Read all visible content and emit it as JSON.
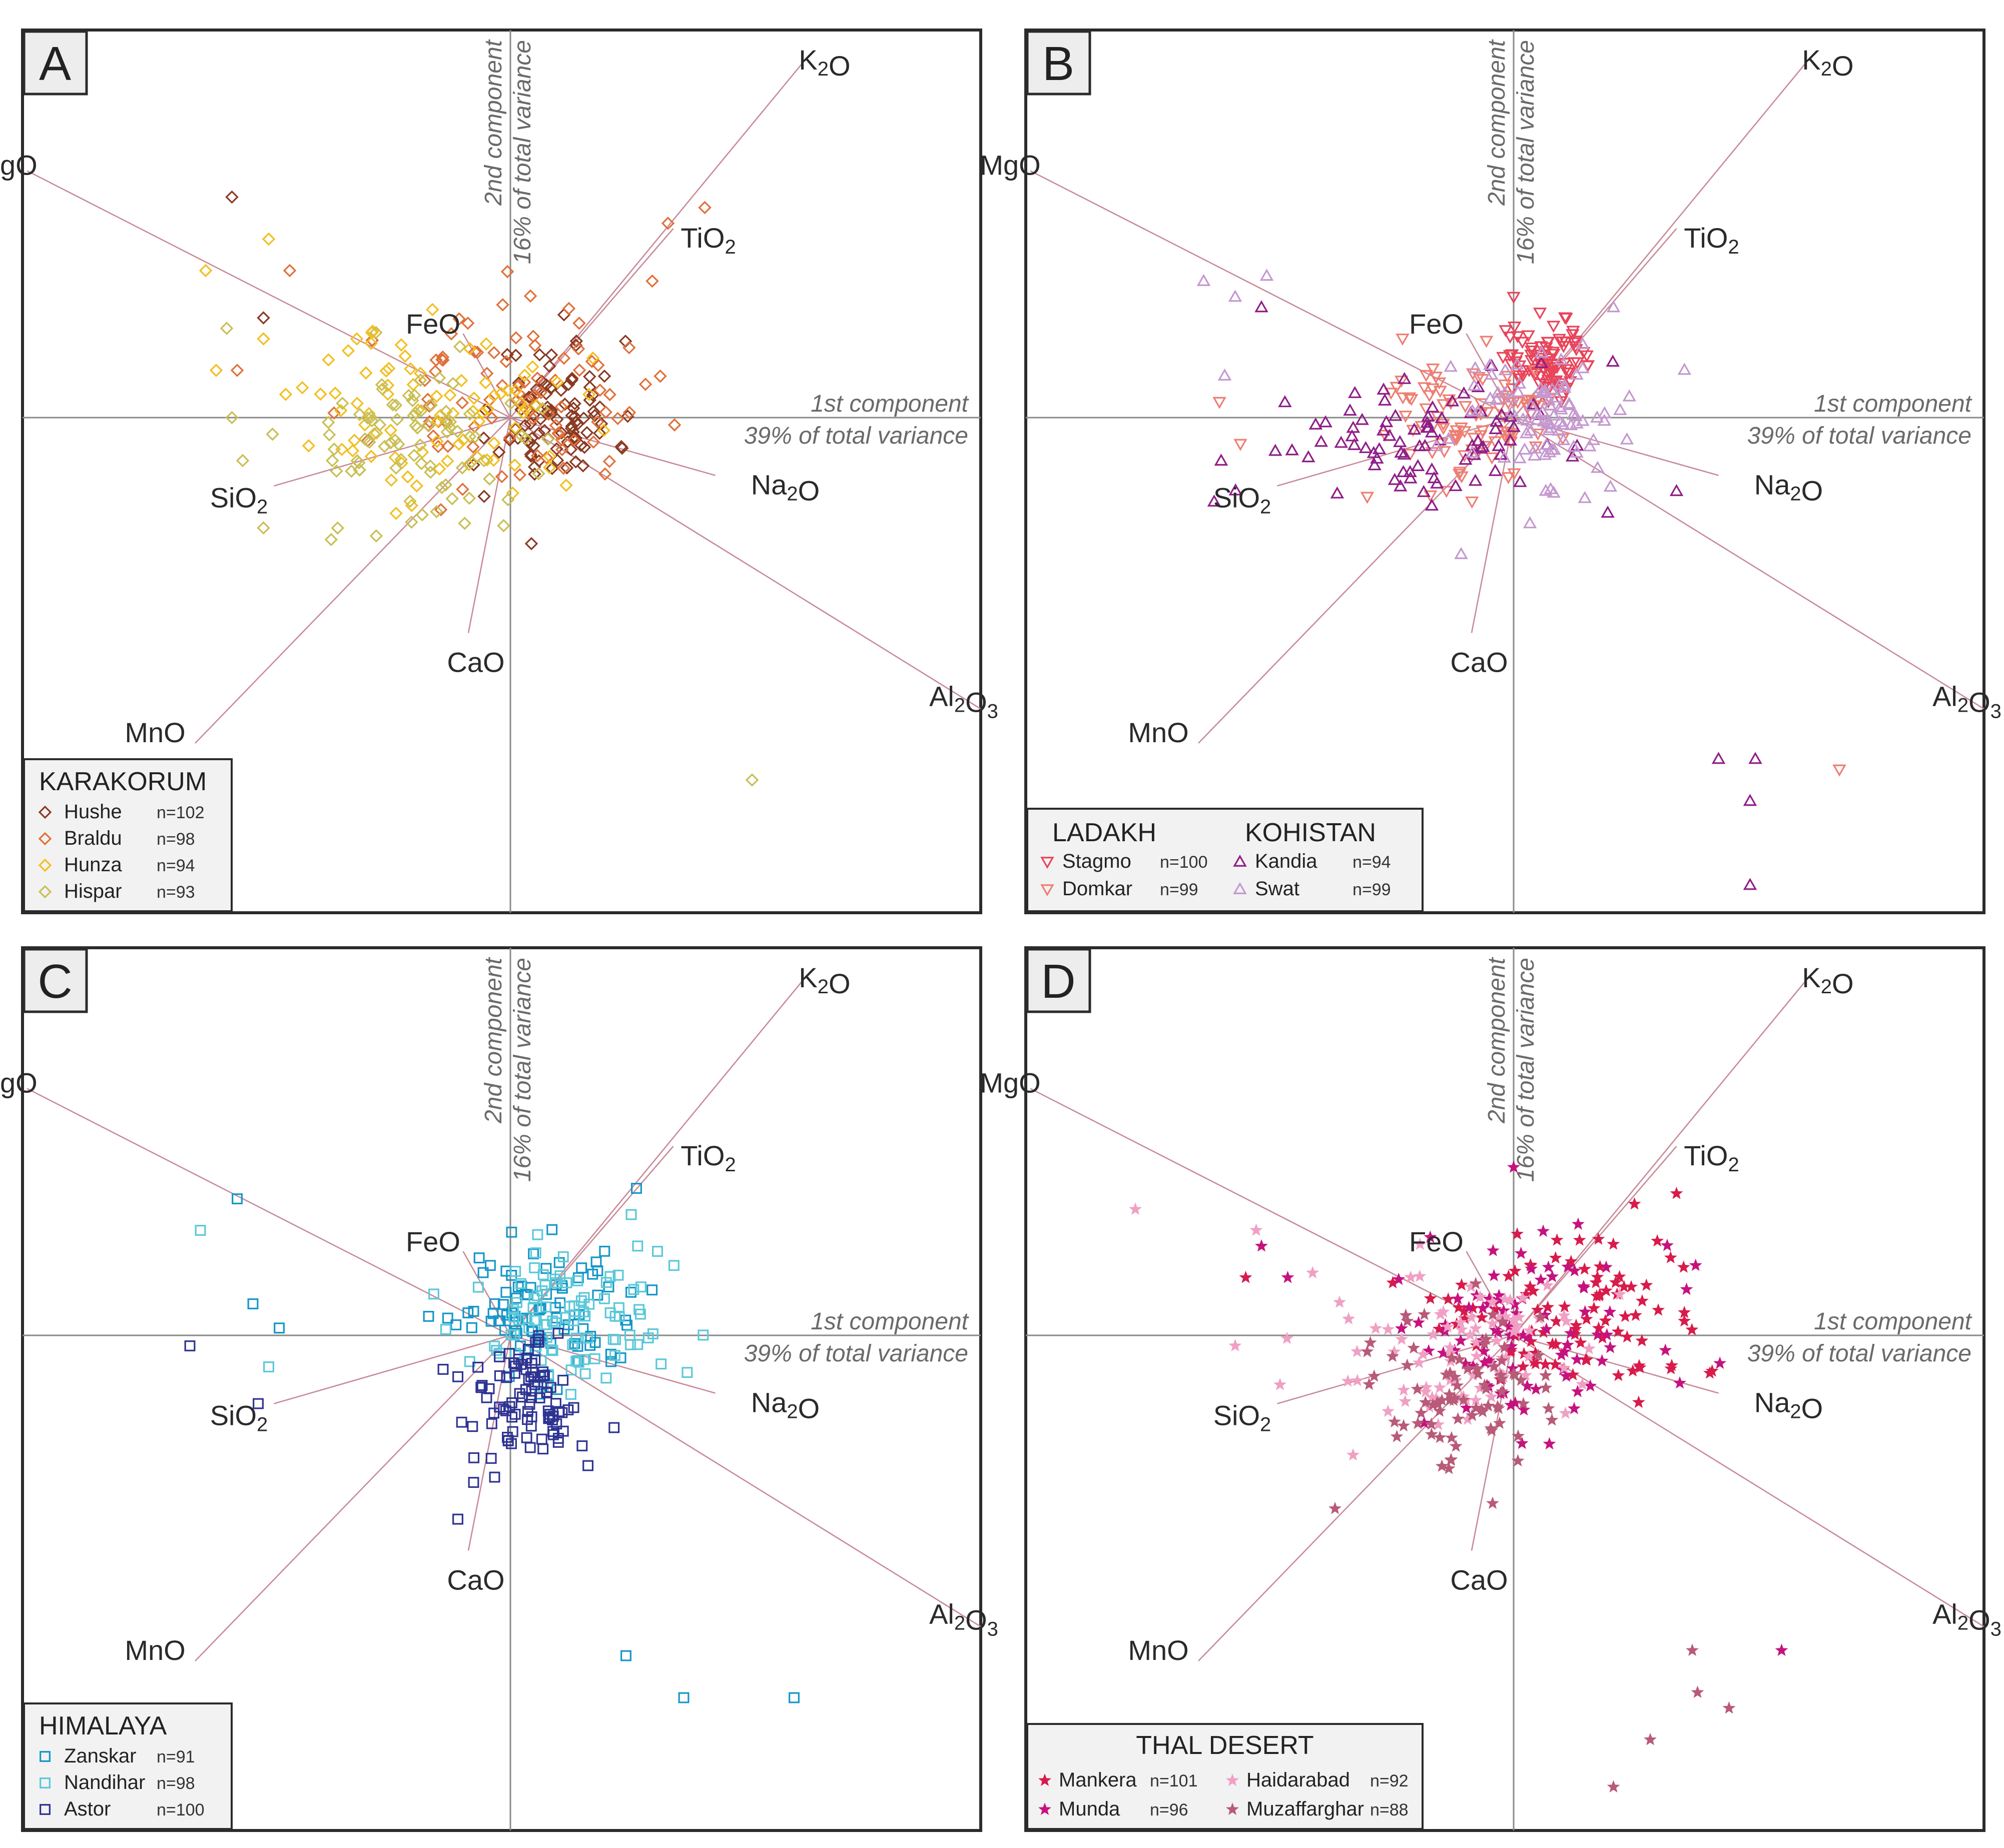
{
  "figure": {
    "component1": {
      "name": "1st component",
      "variance": "39% of total variance"
    },
    "component2": {
      "name": "2nd component",
      "variance": "16% of total variance"
    }
  },
  "chart_data": [
    {
      "type": "scatter",
      "panel": "A",
      "title": "A",
      "xlabel": "1st component 39% of total variance",
      "ylabel": "2nd component 16% of total variance",
      "xlim": [
        -4.5,
        4.5
      ],
      "ylim": [
        -4.5,
        3.5
      ],
      "loadings": [
        {
          "label": "MgO",
          "x": -4.6,
          "y": 2.35
        },
        {
          "label": "K₂O",
          "x": 2.8,
          "y": 3.4
        },
        {
          "label": "TiO₂",
          "x": 1.55,
          "y": 1.8
        },
        {
          "label": "FeO",
          "x": -0.45,
          "y": 0.8
        },
        {
          "label": "Na₂O",
          "x": 1.95,
          "y": -0.55
        },
        {
          "label": "SiO₂",
          "x": -2.25,
          "y": -0.65
        },
        {
          "label": "CaO",
          "x": -0.4,
          "y": -2.05
        },
        {
          "label": "MnO",
          "x": -3.0,
          "y": -3.1
        },
        {
          "label": "Al₂O₃",
          "x": 4.6,
          "y": -2.85
        }
      ],
      "legend": {
        "title": "KARAKORUM",
        "marker": "diamond",
        "entries": [
          {
            "name": "Hushe",
            "count": "n=102",
            "color": "#8a3a22"
          },
          {
            "name": "Braldu",
            "count": "n=98",
            "color": "#e0703a"
          },
          {
            "name": "Hunza",
            "count": "n=94",
            "color": "#f2bf1e"
          },
          {
            "name": "Hispar",
            "count": "n=93",
            "color": "#c9bf54"
          }
        ]
      },
      "series": [
        {
          "name": "Hushe",
          "cloud": {
            "cx": 0.45,
            "cy": 0.05,
            "sx": 0.45,
            "sy": 0.55,
            "n": 90,
            "seed": 11
          },
          "extra": [
            [
              -2.65,
              2.1
            ],
            [
              -2.35,
              0.95
            ],
            [
              0.2,
              -1.2
            ],
            [
              -0.25,
              -0.75
            ],
            [
              -0.35,
              -0.45
            ]
          ]
        },
        {
          "name": "Braldu",
          "cloud": {
            "cx": 0.0,
            "cy": 0.15,
            "sx": 1.0,
            "sy": 0.65,
            "n": 85,
            "seed": 23
          },
          "extra": [
            [
              1.85,
              2.0
            ],
            [
              1.5,
              1.85
            ],
            [
              -2.1,
              1.4
            ],
            [
              -2.6,
              0.45
            ],
            [
              1.35,
              1.3
            ]
          ]
        },
        {
          "name": "Hunza",
          "cloud": {
            "cx": -0.6,
            "cy": 0.05,
            "sx": 1.05,
            "sy": 0.65,
            "n": 85,
            "seed": 37
          },
          "extra": [
            [
              -2.9,
              1.4
            ],
            [
              -2.3,
              1.7
            ],
            [
              -2.8,
              0.45
            ],
            [
              -2.35,
              0.75
            ]
          ]
        },
        {
          "name": "Hispar",
          "cloud": {
            "cx": -0.9,
            "cy": -0.2,
            "sx": 1.0,
            "sy": 0.65,
            "n": 85,
            "seed": 53
          },
          "extra": [
            [
              2.3,
              -3.45
            ],
            [
              -2.35,
              -1.05
            ],
            [
              -2.65,
              0.0
            ],
            [
              -2.7,
              0.85
            ]
          ]
        }
      ]
    },
    {
      "type": "scatter",
      "panel": "B",
      "title": "B",
      "xlabel": "1st component 39% of total variance",
      "ylabel": "2nd component 16% of total variance",
      "xlim": [
        -4.5,
        4.5
      ],
      "ylim": [
        -4.5,
        3.5
      ],
      "loadings": [
        {
          "label": "MgO",
          "x": -4.6,
          "y": 2.35
        },
        {
          "label": "K₂O",
          "x": 2.8,
          "y": 3.4
        },
        {
          "label": "TiO₂",
          "x": 1.55,
          "y": 1.8
        },
        {
          "label": "FeO",
          "x": -0.45,
          "y": 0.8
        },
        {
          "label": "Na₂O",
          "x": 1.95,
          "y": -0.55
        },
        {
          "label": "SiO₂",
          "x": -2.25,
          "y": -0.65
        },
        {
          "label": "CaO",
          "x": -0.4,
          "y": -2.05
        },
        {
          "label": "MnO",
          "x": -3.0,
          "y": -3.1
        },
        {
          "label": "Al₂O₃",
          "x": 4.6,
          "y": -2.85
        }
      ],
      "legend": {
        "title": "LADAKH",
        "title2": "KOHISTAN",
        "entries": [
          {
            "name": "Stagmo",
            "count": "n=100",
            "color": "#e8445a",
            "marker": "tri-down"
          },
          {
            "name": "Domkar",
            "count": "n=99",
            "color": "#ee7e72",
            "marker": "tri-down"
          },
          {
            "name": "Kandia",
            "count": "n=94",
            "color": "#8e1e88",
            "marker": "tri-up"
          },
          {
            "name": "Swat",
            "count": "n=99",
            "color": "#c498cf",
            "marker": "tri-up"
          }
        ]
      },
      "series": [
        {
          "name": "Stagmo",
          "cloud": {
            "cx": 0.3,
            "cy": 0.55,
            "sx": 0.35,
            "sy": 0.35,
            "n": 95,
            "seed": 61
          },
          "extra": [
            [
              0.0,
              1.15
            ],
            [
              0.25,
              1.0
            ],
            [
              0.5,
              0.95
            ]
          ]
        },
        {
          "name": "Domkar",
          "cloud": {
            "cx": -0.4,
            "cy": -0.05,
            "sx": 0.75,
            "sy": 0.55,
            "n": 94,
            "seed": 71
          },
          "extra": [
            [
              -2.8,
              0.15
            ],
            [
              -2.6,
              -0.25
            ],
            [
              3.1,
              -3.35
            ]
          ]
        },
        {
          "name": "Kandia",
          "cloud": {
            "cx": -0.8,
            "cy": -0.25,
            "sx": 1.15,
            "sy": 0.5,
            "n": 86,
            "seed": 83
          },
          "extra": [
            [
              2.3,
              -3.25
            ],
            [
              2.25,
              -3.65
            ],
            [
              1.95,
              -3.25
            ],
            [
              2.25,
              -4.45
            ],
            [
              1.55,
              -0.7
            ],
            [
              -2.4,
              1.05
            ],
            [
              -2.85,
              -0.8
            ]
          ]
        },
        {
          "name": "Swat",
          "cloud": {
            "cx": 0.2,
            "cy": 0.0,
            "sx": 0.75,
            "sy": 0.55,
            "n": 93,
            "seed": 97
          },
          "extra": [
            [
              -2.95,
              1.3
            ],
            [
              -2.35,
              1.35
            ],
            [
              -2.65,
              1.15
            ],
            [
              -2.75,
              0.4
            ],
            [
              0.95,
              1.05
            ],
            [
              -0.5,
              -1.3
            ]
          ]
        }
      ]
    },
    {
      "type": "scatter",
      "panel": "C",
      "title": "C",
      "xlabel": "1st component 39% of total variance",
      "ylabel": "2nd component 16% of total variance",
      "xlim": [
        -4.5,
        4.5
      ],
      "ylim": [
        -4.5,
        3.5
      ],
      "loadings": [
        {
          "label": "MgO",
          "x": -4.6,
          "y": 2.35
        },
        {
          "label": "K₂O",
          "x": 2.8,
          "y": 3.4
        },
        {
          "label": "TiO₂",
          "x": 1.55,
          "y": 1.8
        },
        {
          "label": "FeO",
          "x": -0.45,
          "y": 0.8
        },
        {
          "label": "Na₂O",
          "x": 1.95,
          "y": -0.55
        },
        {
          "label": "SiO₂",
          "x": -2.25,
          "y": -0.65
        },
        {
          "label": "CaO",
          "x": -0.4,
          "y": -2.05
        },
        {
          "label": "MnO",
          "x": -3.0,
          "y": -3.1
        },
        {
          "label": "Al₂O₃",
          "x": 4.6,
          "y": -2.85
        }
      ],
      "legend": {
        "title": "HIMALAYA",
        "marker": "square",
        "entries": [
          {
            "name": "Zanskar",
            "count": "n=91",
            "color": "#1596c8"
          },
          {
            "name": "Nandihar",
            "count": "n=98",
            "color": "#5ac8d8"
          },
          {
            "name": "Astor",
            "count": "n=100",
            "color": "#2e3392"
          }
        ]
      },
      "series": [
        {
          "name": "Zanskar",
          "cloud": {
            "cx": 0.25,
            "cy": 0.25,
            "sx": 0.75,
            "sy": 0.5,
            "n": 84,
            "seed": 131
          },
          "extra": [
            [
              1.1,
              -3.05
            ],
            [
              1.65,
              -3.45
            ],
            [
              2.7,
              -3.45
            ],
            [
              -2.6,
              1.3
            ],
            [
              -2.45,
              0.3
            ],
            [
              -2.2,
              0.07
            ],
            [
              1.2,
              1.4
            ]
          ]
        },
        {
          "name": "Nandihar",
          "cloud": {
            "cx": 0.5,
            "cy": 0.15,
            "sx": 0.75,
            "sy": 0.5,
            "n": 93,
            "seed": 149
          },
          "extra": [
            [
              -2.95,
              1.0
            ],
            [
              1.15,
              1.15
            ],
            [
              1.4,
              0.8
            ],
            [
              -2.3,
              -0.3
            ]
          ]
        },
        {
          "name": "Astor",
          "cloud": {
            "cx": 0.15,
            "cy": -0.6,
            "sx": 0.45,
            "sy": 0.45,
            "n": 95,
            "seed": 163
          },
          "extra": [
            [
              -3.05,
              -0.1
            ],
            [
              -2.4,
              -0.65
            ],
            [
              -0.5,
              -1.75
            ],
            [
              -0.35,
              -1.4
            ],
            [
              -0.15,
              -1.35
            ]
          ]
        }
      ]
    },
    {
      "type": "scatter",
      "panel": "D",
      "title": "D",
      "xlabel": "1st component 39% of total variance",
      "ylabel": "2nd component 16% of total variance",
      "xlim": [
        -4.5,
        4.5
      ],
      "ylim": [
        -4.5,
        3.5
      ],
      "loadings": [
        {
          "label": "MgO",
          "x": -4.6,
          "y": 2.35
        },
        {
          "label": "K₂O",
          "x": 2.8,
          "y": 3.4
        },
        {
          "label": "TiO₂",
          "x": 1.55,
          "y": 1.8
        },
        {
          "label": "FeO",
          "x": -0.45,
          "y": 0.8
        },
        {
          "label": "Na₂O",
          "x": 1.95,
          "y": -0.55
        },
        {
          "label": "SiO₂",
          "x": -2.25,
          "y": -0.65
        },
        {
          "label": "CaO",
          "x": -0.4,
          "y": -2.05
        },
        {
          "label": "MnO",
          "x": -3.0,
          "y": -3.1
        },
        {
          "label": "Al₂O₃",
          "x": 4.6,
          "y": -2.85
        }
      ],
      "legend": {
        "title": "THAL DESERT",
        "marker": "star",
        "entries": [
          {
            "name": "Mankera",
            "count": "n=101",
            "color": "#d81b4a"
          },
          {
            "name": "Munda",
            "count": "n=96",
            "color": "#c6127e"
          },
          {
            "name": "Haidarabad",
            "count": "n=92",
            "color": "#f0a0c4"
          },
          {
            "name": "Muzaffarghar",
            "count": "n=88",
            "color": "#b85a78"
          }
        ]
      },
      "series": [
        {
          "name": "Mankera",
          "cloud": {
            "cx": 0.3,
            "cy": 0.2,
            "sx": 0.9,
            "sy": 0.65,
            "n": 96,
            "seed": 181
          },
          "extra": [
            [
              -2.55,
              0.55
            ],
            [
              -1.15,
              0.5
            ],
            [
              1.55,
              1.35
            ],
            [
              1.15,
              1.25
            ]
          ]
        },
        {
          "name": "Munda",
          "cloud": {
            "cx": 0.1,
            "cy": 0.1,
            "sx": 1.0,
            "sy": 0.7,
            "n": 91,
            "seed": 197
          },
          "extra": [
            [
              0.0,
              1.6
            ],
            [
              2.55,
              -3.0
            ],
            [
              -2.4,
              0.85
            ],
            [
              -2.15,
              0.55
            ]
          ]
        },
        {
          "name": "Haidarabad",
          "cloud": {
            "cx": -0.3,
            "cy": -0.05,
            "sx": 1.1,
            "sy": 0.7,
            "n": 87,
            "seed": 211
          },
          "extra": [
            [
              -3.6,
              1.2
            ],
            [
              -2.45,
              1.0
            ],
            [
              -2.65,
              -0.1
            ]
          ]
        },
        {
          "name": "Muzaffarghar",
          "cloud": {
            "cx": -0.5,
            "cy": -0.55,
            "sx": 0.7,
            "sy": 0.55,
            "n": 81,
            "seed": 223
          },
          "extra": [
            [
              1.7,
              -3.0
            ],
            [
              1.75,
              -3.4
            ],
            [
              2.05,
              -3.55
            ],
            [
              1.3,
              -3.85
            ],
            [
              0.95,
              -4.3
            ],
            [
              -1.7,
              -1.65
            ],
            [
              -0.2,
              -1.6
            ]
          ]
        }
      ]
    }
  ]
}
